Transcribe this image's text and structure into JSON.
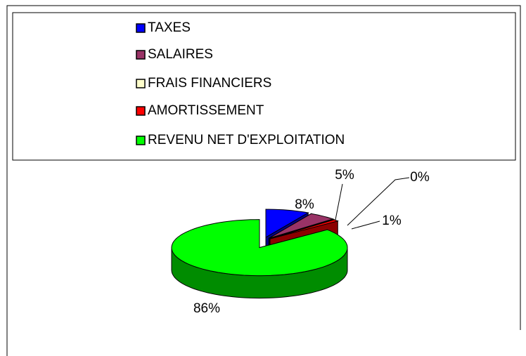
{
  "chart_data": {
    "type": "pie3d",
    "categories": [
      "TAXES",
      "SALAIRES",
      "FRAIS FINANCIERS",
      "AMORTISSEMENT",
      "REVENU NET D'EXPLOITATION"
    ],
    "values": [
      8,
      5,
      0,
      1,
      86
    ],
    "value_labels": [
      "8%",
      "5%",
      "0%",
      "1%",
      "86%"
    ],
    "colors": [
      "#0000ff",
      "#993366",
      "#ffffcc",
      "#ff0000",
      "#00ff00"
    ],
    "legend": "top"
  }
}
